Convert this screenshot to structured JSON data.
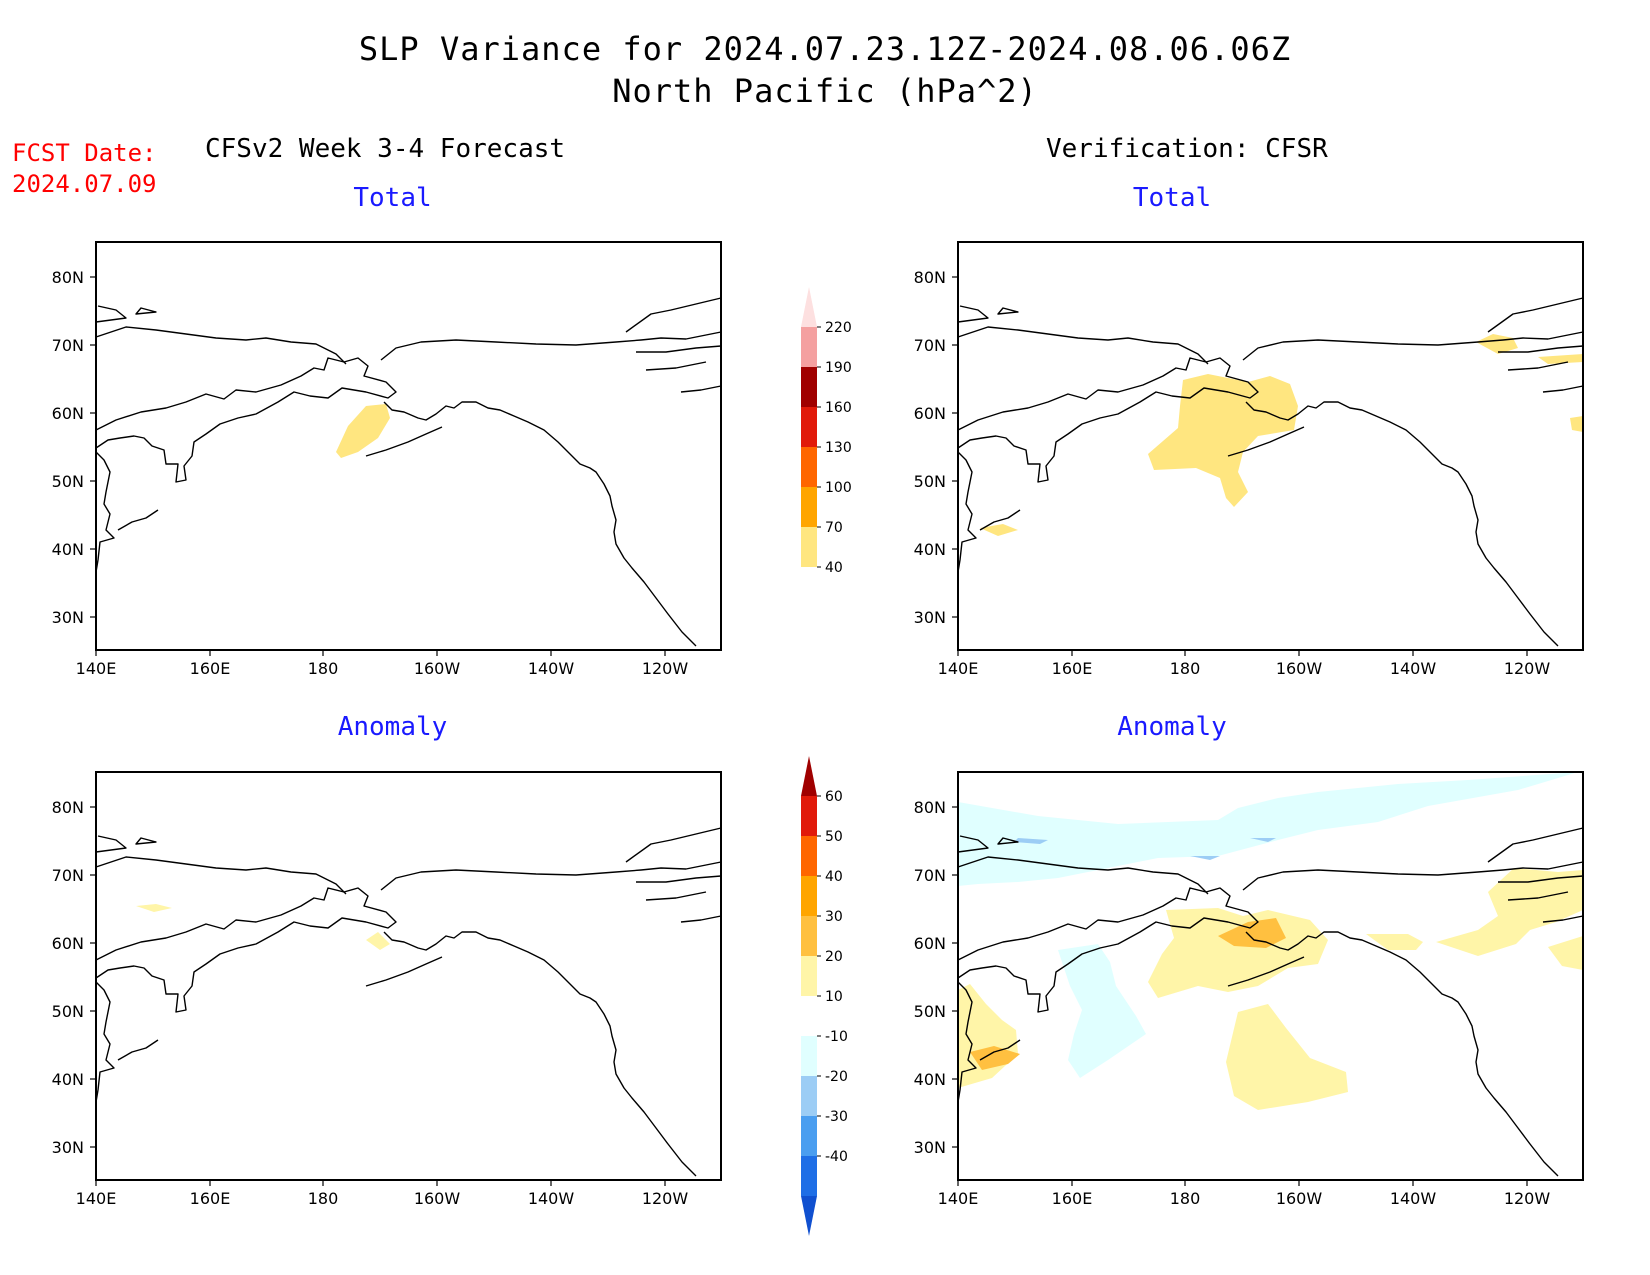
{
  "header": {
    "title_line1": "SLP Variance for 2024.07.23.12Z-2024.08.06.06Z",
    "title_line2": "North Pacific (hPa^2)",
    "fcst_label": "FCST Date:",
    "fcst_date": "2024.07.09",
    "left_column": "CFSv2 Week 3-4 Forecast",
    "right_column": "Verification: CFSR"
  },
  "panels": [
    {
      "id": "forecast-total",
      "label": "Total"
    },
    {
      "id": "verification-total",
      "label": "Total"
    },
    {
      "id": "forecast-anomaly",
      "label": "Anomaly"
    },
    {
      "id": "verification-anomaly",
      "label": "Anomaly"
    }
  ],
  "axes": {
    "lat_ticks": [
      "80N",
      "70N",
      "60N",
      "50N",
      "40N",
      "30N"
    ],
    "lon_ticks": [
      "140E",
      "160E",
      "180",
      "160W",
      "140W",
      "120W"
    ]
  },
  "colorbars": {
    "total": {
      "levels": [
        "40",
        "70",
        "100",
        "130",
        "160",
        "190",
        "220"
      ],
      "colors": [
        "#ffe680",
        "#ffa500",
        "#ff6600",
        "#e11a0a",
        "#a00000",
        "#f4a0a0",
        "#fde0e0"
      ]
    },
    "anomaly": {
      "levels": [
        "60",
        "50",
        "40",
        "30",
        "20",
        "10",
        "-10",
        "-20",
        "-30",
        "-40"
      ],
      "colors": [
        "#a00000",
        "#e11a0a",
        "#ff6600",
        "#ffa500",
        "#ffc040",
        "#fff5a8",
        "#ffffff",
        "#e0ffff",
        "#9ccdf5",
        "#4a9ef0",
        "#1e6ee6",
        "#1050d0"
      ]
    }
  }
}
